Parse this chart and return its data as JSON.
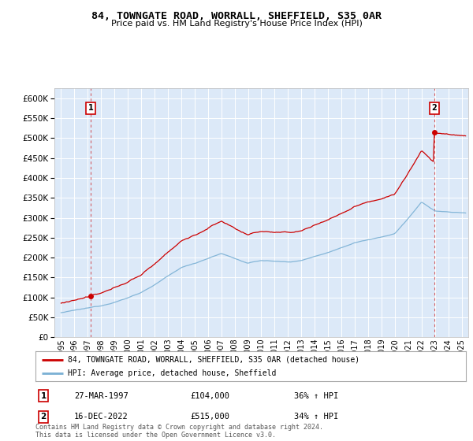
{
  "title": "84, TOWNGATE ROAD, WORRALL, SHEFFIELD, S35 0AR",
  "subtitle": "Price paid vs. HM Land Registry's House Price Index (HPI)",
  "ylim": [
    0,
    620000
  ],
  "xlim_start": 1994.5,
  "xlim_end": 2025.5,
  "transaction1_date": 1997.23,
  "transaction1_price": 104000,
  "transaction2_date": 2022.96,
  "transaction2_price": 515000,
  "legend_line1": "84, TOWNGATE ROAD, WORRALL, SHEFFIELD, S35 0AR (detached house)",
  "legend_line2": "HPI: Average price, detached house, Sheffield",
  "label1_date": "27-MAR-1997",
  "label1_price": "£104,000",
  "label1_hpi": "36% ↑ HPI",
  "label2_date": "16-DEC-2022",
  "label2_price": "£515,000",
  "label2_hpi": "34% ↑ HPI",
  "footnote": "Contains HM Land Registry data © Crown copyright and database right 2024.\nThis data is licensed under the Open Government Licence v3.0.",
  "bg_color": "#dce9f8",
  "red_line_color": "#cc0000",
  "blue_line_color": "#7ab0d4",
  "grid_color": "#ffffff",
  "box_color": "#cc0000"
}
